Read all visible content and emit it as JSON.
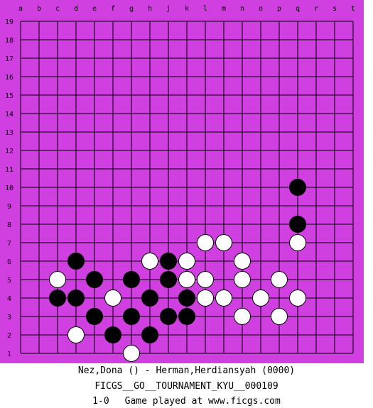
{
  "board": {
    "columns": [
      "a",
      "b",
      "c",
      "d",
      "e",
      "f",
      "g",
      "h",
      "j",
      "k",
      "l",
      "m",
      "n",
      "o",
      "p",
      "q",
      "r",
      "s",
      "t"
    ],
    "rows": [
      "19",
      "18",
      "17",
      "16",
      "15",
      "14",
      "13",
      "12",
      "11",
      "10",
      "9",
      "8",
      "7",
      "6",
      "5",
      "4",
      "3",
      "2",
      "1"
    ],
    "colors": {
      "frame": "#d040e0",
      "line": "#000000",
      "black": "#000000",
      "white": "#ffffff"
    },
    "black_stones": [
      "q10",
      "q8",
      "d6",
      "j6",
      "e5",
      "g5",
      "j5",
      "c4",
      "d4",
      "h4",
      "k4",
      "e3",
      "g3",
      "j3",
      "k3",
      "f2",
      "h2"
    ],
    "white_stones": [
      "l7",
      "m7",
      "q7",
      "h6",
      "k6",
      "n6",
      "c5",
      "k5",
      "l5",
      "n5",
      "p5",
      "f4",
      "l4",
      "m4",
      "o4",
      "q4",
      "n3",
      "p3",
      "d2",
      "g1"
    ]
  },
  "game": {
    "players": "Nez,Dona () - Herman,Herdiansyah (0000)",
    "event": "FICGS__GO__TOURNAMENT_KYU__000109",
    "result": "1-0",
    "site": "Game played at www.ficgs.com"
  }
}
